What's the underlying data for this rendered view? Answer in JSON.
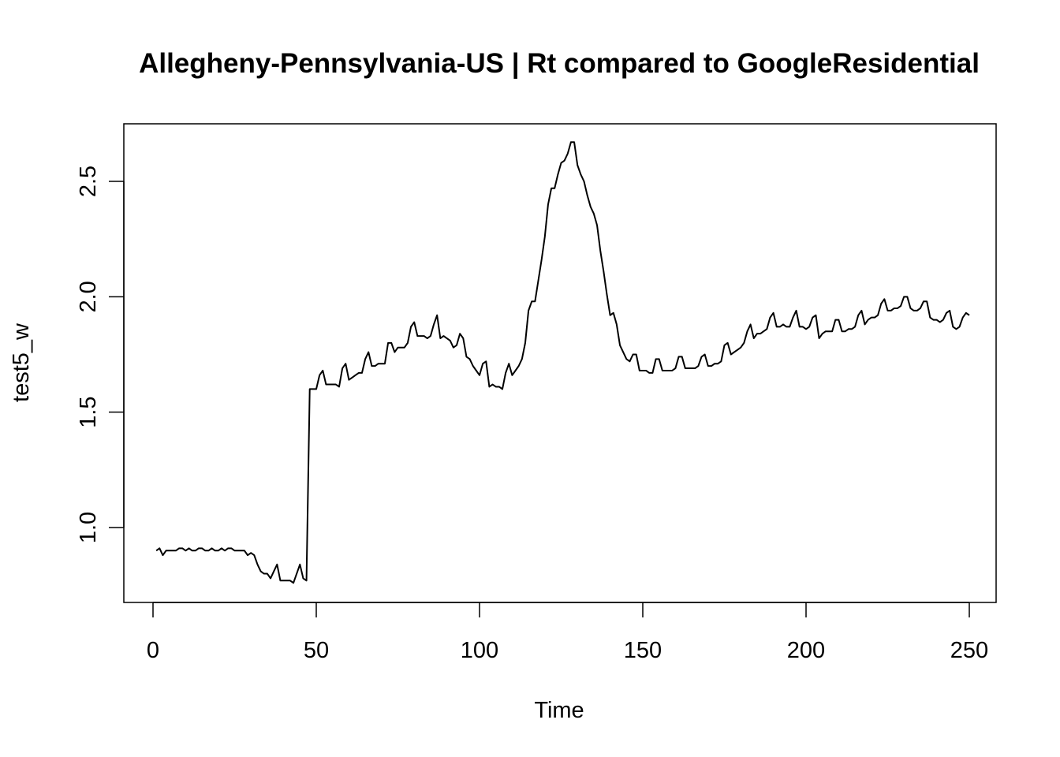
{
  "chart_data": {
    "type": "line",
    "title": "Allegheny-Pennsylvania-US | Rt compared to GoogleResidential",
    "xlabel": "Time",
    "ylabel": "test5_w",
    "xlim": [
      0,
      250
    ],
    "ylim": [
      0.75,
      2.7
    ],
    "x_ticks": [
      0,
      50,
      100,
      150,
      200,
      250
    ],
    "x_tick_labels": [
      "0",
      "50",
      "100",
      "150",
      "200",
      "250"
    ],
    "y_ticks": [
      1.0,
      1.5,
      2.0,
      2.5
    ],
    "y_tick_labels": [
      "1.0",
      "1.5",
      "2.0",
      "2.5"
    ],
    "grid": false,
    "legend": "none",
    "line_color": "#000000",
    "series": [
      {
        "values": [
          0.9,
          0.91,
          0.88,
          0.9,
          0.9,
          0.9,
          0.9,
          0.91,
          0.91,
          0.9,
          0.91,
          0.9,
          0.9,
          0.91,
          0.91,
          0.9,
          0.9,
          0.91,
          0.9,
          0.9,
          0.91,
          0.9,
          0.91,
          0.91,
          0.9,
          0.9,
          0.9,
          0.9,
          0.88,
          0.89,
          0.88,
          0.84,
          0.81,
          0.8,
          0.8,
          0.78,
          0.81,
          0.84,
          0.77,
          0.77,
          0.77,
          0.77,
          0.76,
          0.8,
          0.84,
          0.78,
          0.77,
          1.6,
          1.6,
          1.6,
          1.66,
          1.68,
          1.62,
          1.62,
          1.62,
          1.62,
          1.61,
          1.69,
          1.71,
          1.64,
          1.65,
          1.66,
          1.67,
          1.67,
          1.73,
          1.76,
          1.7,
          1.7,
          1.71,
          1.71,
          1.71,
          1.8,
          1.8,
          1.76,
          1.78,
          1.78,
          1.78,
          1.8,
          1.87,
          1.89,
          1.83,
          1.83,
          1.83,
          1.82,
          1.83,
          1.88,
          1.92,
          1.82,
          1.83,
          1.82,
          1.81,
          1.78,
          1.79,
          1.84,
          1.82,
          1.74,
          1.73,
          1.7,
          1.68,
          1.66,
          1.71,
          1.72,
          1.61,
          1.62,
          1.61,
          1.61,
          1.6,
          1.67,
          1.71,
          1.66,
          1.68,
          1.7,
          1.73,
          1.8,
          1.94,
          1.98,
          1.98,
          2.07,
          2.16,
          2.26,
          2.4,
          2.47,
          2.47,
          2.53,
          2.58,
          2.59,
          2.62,
          2.67,
          2.67,
          2.57,
          2.53,
          2.5,
          2.44,
          2.39,
          2.36,
          2.31,
          2.2,
          2.11,
          2.01,
          1.92,
          1.93,
          1.88,
          1.79,
          1.76,
          1.73,
          1.72,
          1.75,
          1.75,
          1.68,
          1.68,
          1.68,
          1.67,
          1.67,
          1.73,
          1.73,
          1.68,
          1.68,
          1.68,
          1.68,
          1.69,
          1.74,
          1.74,
          1.69,
          1.69,
          1.69,
          1.69,
          1.7,
          1.74,
          1.75,
          1.7,
          1.7,
          1.71,
          1.71,
          1.72,
          1.79,
          1.8,
          1.75,
          1.76,
          1.77,
          1.78,
          1.8,
          1.85,
          1.88,
          1.82,
          1.84,
          1.84,
          1.85,
          1.86,
          1.91,
          1.93,
          1.87,
          1.87,
          1.88,
          1.87,
          1.87,
          1.91,
          1.94,
          1.87,
          1.87,
          1.86,
          1.87,
          1.91,
          1.92,
          1.82,
          1.84,
          1.85,
          1.85,
          1.85,
          1.9,
          1.9,
          1.85,
          1.85,
          1.86,
          1.86,
          1.87,
          1.92,
          1.94,
          1.88,
          1.9,
          1.91,
          1.91,
          1.92,
          1.97,
          1.99,
          1.94,
          1.94,
          1.95,
          1.95,
          1.96,
          2.0,
          2.0,
          1.95,
          1.94,
          1.94,
          1.95,
          1.98,
          1.98,
          1.91,
          1.9,
          1.9,
          1.89,
          1.9,
          1.93,
          1.94,
          1.87,
          1.86,
          1.87,
          1.91,
          1.93,
          1.92
        ]
      }
    ]
  }
}
